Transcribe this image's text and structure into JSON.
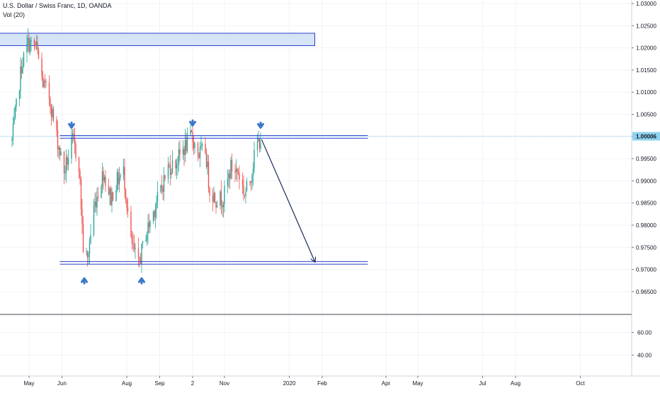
{
  "header": {
    "symbol": "U.S. Dollar / Swiss Franc, 1D, OANDA",
    "volume_study": "Vol (20)"
  },
  "price_axis": {
    "ticks": [
      "1.03000",
      "1.02500",
      "1.02000",
      "1.01500",
      "1.01000",
      "1.00500",
      "1.00000",
      "0.99500",
      "0.99000",
      "0.98500",
      "0.98000",
      "0.97500",
      "0.97000",
      "0.96500"
    ],
    "current_price_label": "1.00006"
  },
  "volume_axis": {
    "ticks": [
      "60.00",
      "40.00"
    ]
  },
  "time_axis": {
    "ticks": [
      "May",
      "Jun",
      "Aug",
      "Sep",
      "2",
      "Nov",
      "2020",
      "Feb",
      "Apr",
      "May",
      "Jul",
      "Aug",
      "Oct"
    ]
  },
  "colors": {
    "up": "#26a69a",
    "down": "#ef5350",
    "volume_up": "#8fd4cd",
    "volume_down": "#f4a8a6",
    "zone_fill": "#d6e4f7",
    "zone_border": "#2a3ec9",
    "support_resistance_line": "#2a3ec9",
    "arrow": "#3b78c9",
    "projection_arrow": "#1d2a5c",
    "price_line": "#8fd3f0"
  },
  "chart_data": {
    "type": "candlestick",
    "title": "U.S. Dollar / Swiss Franc, 1D, OANDA",
    "ylim": [
      0.9625,
      1.0303
    ],
    "y_ticks": [
      1.03,
      1.025,
      1.02,
      1.015,
      1.01,
      1.005,
      1.0,
      0.995,
      0.99,
      0.985,
      0.98,
      0.975,
      0.97,
      0.965
    ],
    "current_price": 1.00006,
    "price_path_approx": [
      {
        "date": "2019-04-15",
        "price": 0.999
      },
      {
        "date": "2019-04-24",
        "price": 1.016
      },
      {
        "date": "2019-04-30",
        "price": 1.021
      },
      {
        "date": "2019-05-08",
        "price": 1.02
      },
      {
        "date": "2019-05-14",
        "price": 1.012
      },
      {
        "date": "2019-05-20",
        "price": 1.009
      },
      {
        "date": "2019-05-27",
        "price": 1.0
      },
      {
        "date": "2019-06-03",
        "price": 0.992
      },
      {
        "date": "2019-06-11",
        "price": 0.999
      },
      {
        "date": "2019-06-17",
        "price": 0.994
      },
      {
        "date": "2019-06-21",
        "price": 0.975
      },
      {
        "date": "2019-06-25",
        "price": 0.972
      },
      {
        "date": "2019-07-01",
        "price": 0.984
      },
      {
        "date": "2019-07-10",
        "price": 0.992
      },
      {
        "date": "2019-07-17",
        "price": 0.986
      },
      {
        "date": "2019-07-23",
        "price": 0.99
      },
      {
        "date": "2019-07-29",
        "price": 0.992
      },
      {
        "date": "2019-08-05",
        "price": 0.976
      },
      {
        "date": "2019-08-12",
        "price": 0.971
      },
      {
        "date": "2019-08-19",
        "price": 0.978
      },
      {
        "date": "2019-08-26",
        "price": 0.983
      },
      {
        "date": "2019-09-02",
        "price": 0.988
      },
      {
        "date": "2019-09-09",
        "price": 0.993
      },
      {
        "date": "2019-09-16",
        "price": 0.994
      },
      {
        "date": "2019-09-23",
        "price": 0.997
      },
      {
        "date": "2019-10-01",
        "price": 1.0
      },
      {
        "date": "2019-10-08",
        "price": 0.996
      },
      {
        "date": "2019-10-14",
        "price": 0.997
      },
      {
        "date": "2019-10-18",
        "price": 0.988
      },
      {
        "date": "2019-10-24",
        "price": 0.986
      },
      {
        "date": "2019-10-31",
        "price": 0.986
      },
      {
        "date": "2019-11-07",
        "price": 0.993
      },
      {
        "date": "2019-11-14",
        "price": 0.992
      },
      {
        "date": "2019-11-20",
        "price": 0.987
      },
      {
        "date": "2019-11-25",
        "price": 0.99
      },
      {
        "date": "2019-12-01",
        "price": 0.998
      },
      {
        "date": "2019-12-05",
        "price": 0.9995
      }
    ],
    "zones": [
      {
        "kind": "resistance_zone",
        "from": 1.0205,
        "to": 1.0233,
        "start": "2019-04-01",
        "end": "2020-01-25"
      }
    ],
    "horizontal_levels": [
      {
        "kind": "resistance",
        "from": 0.9996,
        "to": 1.0002,
        "start": "2019-05-30",
        "end": "2020-03-15"
      },
      {
        "kind": "support",
        "from": 0.9712,
        "to": 0.9718,
        "start": "2019-05-30",
        "end": "2020-03-15"
      }
    ],
    "markers": [
      {
        "direction": "down",
        "date": "2019-06-10",
        "price": 1.002
      },
      {
        "direction": "down",
        "date": "2019-10-02",
        "price": 1.0025
      },
      {
        "direction": "down",
        "date": "2019-12-05",
        "price": 1.002
      },
      {
        "direction": "up",
        "date": "2019-06-22",
        "price": 0.968
      },
      {
        "direction": "up",
        "date": "2019-08-15",
        "price": 0.968
      }
    ],
    "projection": {
      "from_date": "2019-12-06",
      "from_price": 0.9993,
      "to_date": "2020-01-25",
      "to_price": 0.9718
    },
    "volume": {
      "ylim": [
        30,
        80
      ],
      "y_ticks": [
        60,
        40
      ]
    },
    "x_ticks": [
      {
        "label": "May",
        "date": "2019-05-01"
      },
      {
        "label": "Jun",
        "date": "2019-06-01"
      },
      {
        "label": "Aug",
        "date": "2019-08-01"
      },
      {
        "label": "Sep",
        "date": "2019-09-01"
      },
      {
        "label": "2",
        "date": "2019-10-02"
      },
      {
        "label": "Nov",
        "date": "2019-11-01"
      },
      {
        "label": "2020",
        "date": "2020-01-01"
      },
      {
        "label": "Feb",
        "date": "2020-02-01"
      },
      {
        "label": "Apr",
        "date": "2020-04-01"
      },
      {
        "label": "May",
        "date": "2020-05-01"
      },
      {
        "label": "Jul",
        "date": "2020-07-01"
      },
      {
        "label": "Aug",
        "date": "2020-08-01"
      },
      {
        "label": "Oct",
        "date": "2020-10-01"
      }
    ]
  }
}
